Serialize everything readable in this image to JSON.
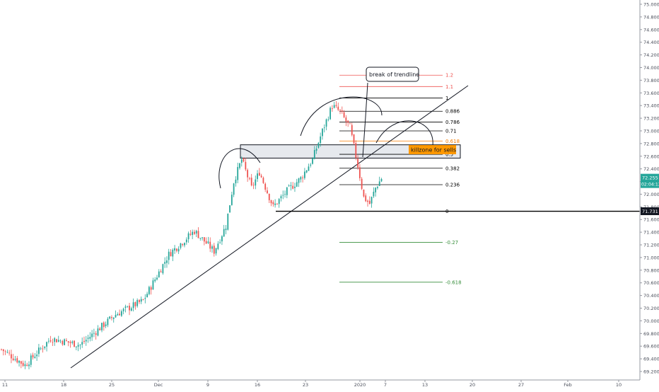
{
  "chart_data": {
    "type": "candlestick",
    "title": "",
    "xlabel": "",
    "ylabel": "",
    "ylim": [
      69.1,
      75.0
    ],
    "grid": false,
    "price_axis": {
      "ticks": [
        "75.000",
        "74.800",
        "74.600",
        "74.400",
        "74.200",
        "74.000",
        "73.800",
        "73.600",
        "73.400",
        "73.200",
        "73.000",
        "72.800",
        "72.600",
        "72.400",
        "72.200",
        "72.000",
        "71.800",
        "71.600",
        "71.400",
        "71.200",
        "71.000",
        "70.800",
        "70.600",
        "70.400",
        "70.200",
        "70.000",
        "69.800",
        "69.600",
        "69.400",
        "69.200"
      ],
      "current_price": "72.255",
      "countdown": "02:04:12",
      "marked_price": "71.731",
      "current_color": "#26a69a",
      "marked_color": "#000000"
    },
    "time_axis": {
      "ticks": [
        "11",
        "18",
        "25",
        "Dec",
        "9",
        "16",
        "23",
        "2020",
        "7",
        "13",
        "20",
        "27",
        "Feb",
        "10"
      ]
    },
    "series": [
      {
        "name": "",
        "type": "candlestick",
        "up_color": "#26a69a",
        "down_color": "#ef5350",
        "anchors": [
          {
            "bar": 0,
            "close": 69.55
          },
          {
            "bar": 12,
            "close": 69.3
          },
          {
            "bar": 25,
            "close": 69.72
          },
          {
            "bar": 40,
            "close": 69.62
          },
          {
            "bar": 58,
            "close": 70.1
          },
          {
            "bar": 72,
            "close": 70.32
          },
          {
            "bar": 85,
            "close": 71.05
          },
          {
            "bar": 98,
            "close": 71.42
          },
          {
            "bar": 108,
            "close": 71.1
          },
          {
            "bar": 114,
            "close": 71.5
          },
          {
            "bar": 118,
            "close": 72.2
          },
          {
            "bar": 122,
            "close": 72.55
          },
          {
            "bar": 127,
            "close": 72.1
          },
          {
            "bar": 131,
            "close": 72.35
          },
          {
            "bar": 138,
            "close": 71.8
          },
          {
            "bar": 145,
            "close": 72.05
          },
          {
            "bar": 152,
            "close": 72.25
          },
          {
            "bar": 158,
            "close": 72.55
          },
          {
            "bar": 163,
            "close": 73.0
          },
          {
            "bar": 168,
            "close": 73.4
          },
          {
            "bar": 172,
            "close": 73.3
          },
          {
            "bar": 177,
            "close": 73.05
          },
          {
            "bar": 181,
            "close": 72.45
          },
          {
            "bar": 184,
            "close": 71.95
          },
          {
            "bar": 187,
            "close": 71.85
          },
          {
            "bar": 190,
            "close": 72.1
          },
          {
            "bar": 193,
            "close": 72.25
          }
        ],
        "volatility": 0.055
      }
    ],
    "fibonacci": [
      {
        "level": "1.2",
        "price": 73.88,
        "color": "#ef5350"
      },
      {
        "level": "1.1",
        "price": 73.7,
        "color": "#ef5350"
      },
      {
        "level": "1",
        "price": 73.52,
        "color": "#000000"
      },
      {
        "level": "0.886",
        "price": 73.31,
        "color": "#000000"
      },
      {
        "level": "0.786",
        "price": 73.14,
        "color": "#000000"
      },
      {
        "level": "0.71",
        "price": 73.0,
        "color": "#000000"
      },
      {
        "level": "0.618",
        "price": 72.84,
        "color": "#f57c00"
      },
      {
        "level": "0.5",
        "price": 72.63,
        "color": "#000000"
      },
      {
        "level": "0.382",
        "price": 72.41,
        "color": "#000000"
      },
      {
        "level": "0.236",
        "price": 72.15,
        "color": "#000000"
      },
      {
        "level": "0",
        "price": 71.73,
        "color": "#000000"
      },
      {
        "level": "-0.27",
        "price": 71.24,
        "color": "#388e3c"
      },
      {
        "level": "-0.618",
        "price": 70.61,
        "color": "#388e3c"
      }
    ],
    "annotations": {
      "callout": "break of trendline",
      "zone_label": "killzone for sells",
      "zone_label_bg": "#ff9800",
      "zone_fill": "#e6e9ee"
    }
  }
}
